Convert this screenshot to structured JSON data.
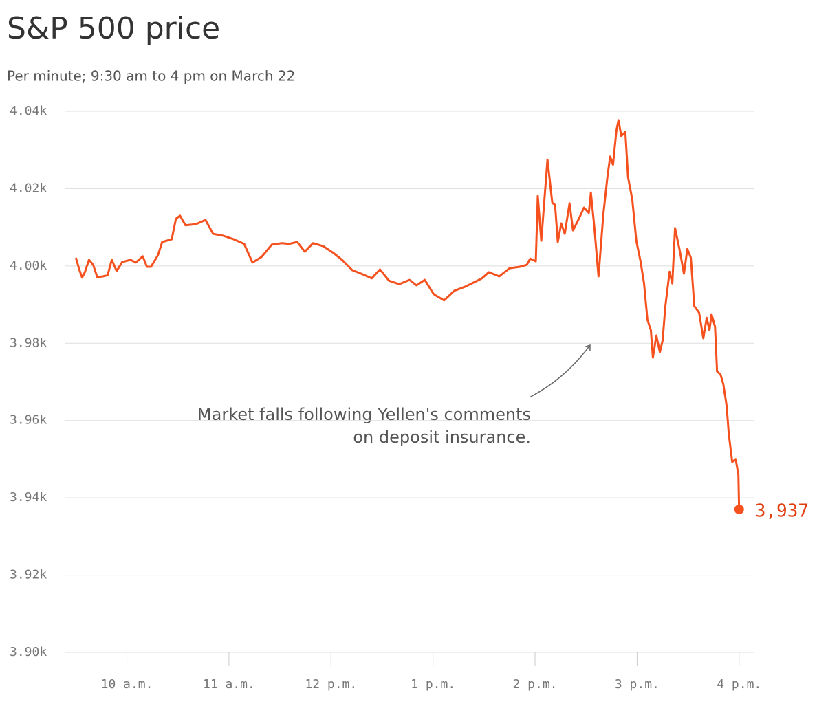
{
  "chart_data": {
    "type": "line",
    "title": "S&P 500 price",
    "subtitle": "Per minute; 9:30 am to 4 pm on March 22",
    "annotation": [
      "Market falls following Yellen's comments",
      "on deposit insurance."
    ],
    "color": "#f5511f",
    "label_color": "#e03d10",
    "grid": true,
    "xlim": [
      9.43,
      16.15
    ],
    "ylim": [
      3900,
      4040
    ],
    "xticks": [
      {
        "value": 10,
        "label": "10 a.m."
      },
      {
        "value": 11,
        "label": "11 a.m."
      },
      {
        "value": 12,
        "label": "12 p.m."
      },
      {
        "value": 13,
        "label": "1 p.m."
      },
      {
        "value": 14,
        "label": "2 p.m."
      },
      {
        "value": 15,
        "label": "3 p.m."
      },
      {
        "value": 16,
        "label": "4 p.m."
      }
    ],
    "yticks": [
      {
        "value": 3900,
        "label": "3.90k"
      },
      {
        "value": 3920,
        "label": "3.92k"
      },
      {
        "value": 3940,
        "label": "3.94k"
      },
      {
        "value": 3960,
        "label": "3.96k"
      },
      {
        "value": 3980,
        "label": "3.98k"
      },
      {
        "value": 4000,
        "label": "4.00k"
      },
      {
        "value": 4020,
        "label": "4.02k"
      },
      {
        "value": 4040,
        "label": "4.04k"
      }
    ],
    "x": [
      9.5,
      9.534,
      9.561,
      9.588,
      9.628,
      9.669,
      9.709,
      9.764,
      9.811,
      9.851,
      9.899,
      9.953,
      10.034,
      10.088,
      10.155,
      10.196,
      10.236,
      10.304,
      10.345,
      10.439,
      10.48,
      10.52,
      10.574,
      10.676,
      10.77,
      10.845,
      10.946,
      11.047,
      11.149,
      11.23,
      11.318,
      11.419,
      11.52,
      11.588,
      11.669,
      11.743,
      11.824,
      11.926,
      12.027,
      12.108,
      12.209,
      12.297,
      12.399,
      12.48,
      12.568,
      12.669,
      12.77,
      12.838,
      12.919,
      13.007,
      13.108,
      13.209,
      13.311,
      13.412,
      13.48,
      13.547,
      13.649,
      13.75,
      13.851,
      13.919,
      13.953,
      14.007,
      14.027,
      14.061,
      14.122,
      14.169,
      14.196,
      14.223,
      14.257,
      14.291,
      14.338,
      14.372,
      14.426,
      14.48,
      14.527,
      14.547,
      14.581,
      14.622,
      14.669,
      14.709,
      14.736,
      14.764,
      14.797,
      14.818,
      14.845,
      14.885,
      14.912,
      14.953,
      14.993,
      15.034,
      15.068,
      15.101,
      15.135,
      15.155,
      15.189,
      15.223,
      15.25,
      15.277,
      15.318,
      15.345,
      15.372,
      15.419,
      15.459,
      15.493,
      15.527,
      15.561,
      15.608,
      15.649,
      15.682,
      15.709,
      15.73,
      15.764,
      15.784,
      15.818,
      15.845,
      15.878,
      15.899,
      15.932,
      15.966,
      15.993,
      16.0
    ],
    "values": [
      4002.1,
      3999,
      3997,
      3998.4,
      4001.6,
      4000.3,
      3997.1,
      3997.3,
      3997.6,
      4001.6,
      3998.7,
      4001,
      4001.6,
      4000.9,
      4002.5,
      3999.8,
      3999.8,
      4002.8,
      4006.2,
      4006.9,
      4012.2,
      4013,
      4010.5,
      4010.8,
      4011.9,
      4008.3,
      4007.8,
      4006.9,
      4005.7,
      4000.9,
      4002.3,
      4005.5,
      4005.9,
      4005.7,
      4006.2,
      4003.7,
      4005.9,
      4005.1,
      4003.3,
      4001.6,
      3998.9,
      3998,
      3996.8,
      3999.1,
      3996.2,
      3995.3,
      3996.4,
      3995,
      3996.4,
      3992.7,
      3991.1,
      3993.6,
      3994.6,
      3995.9,
      3996.8,
      3998.4,
      3997.3,
      3999.4,
      3999.8,
      4000.3,
      4001.9,
      4001.2,
      4018.1,
      4006.5,
      4027.5,
      4016.3,
      4015.8,
      4006.2,
      4011,
      4008.3,
      4016.2,
      4009.2,
      4012,
      4015.1,
      4013.7,
      4019,
      4010.1,
      3997.3,
      4013.3,
      4022.9,
      4028.3,
      4026.2,
      4035,
      4037.7,
      4033.6,
      4034.7,
      4022.9,
      4017.2,
      4006.5,
      4001.2,
      3995.5,
      3986.1,
      3983.4,
      3976.3,
      3982,
      3977.7,
      3980.7,
      3989.6,
      3998.5,
      3995.5,
      4009.8,
      4003.9,
      3998,
      4004.4,
      4002.1,
      3989.6,
      3987.9,
      3981.3,
      3986.6,
      3983.4,
      3987.5,
      3984.3,
      3972.7,
      3971.9,
      3969.5,
      3963.8,
      3956.4,
      3949.3,
      3950,
      3946,
      3937
    ],
    "value_labels": [
      null,
      null,
      null,
      null,
      null,
      null,
      null,
      null,
      null,
      null,
      null,
      null,
      null,
      null,
      null,
      null,
      null,
      null,
      null,
      null,
      null,
      null,
      null,
      null,
      null,
      null,
      null,
      null,
      null,
      null,
      null,
      null,
      null,
      null,
      null,
      null,
      null,
      null,
      null,
      null,
      null,
      null,
      null,
      null,
      null,
      null,
      null,
      null,
      null,
      null,
      null,
      null,
      null,
      null,
      null,
      null,
      null,
      null,
      null,
      null,
      null,
      null,
      null,
      null,
      null,
      null,
      null,
      null,
      null,
      null,
      null,
      null,
      null,
      null,
      null,
      null,
      null,
      null,
      null,
      null,
      null,
      null,
      null,
      null,
      null,
      null,
      null,
      null,
      null,
      null,
      null,
      null,
      null,
      null,
      null,
      null,
      null,
      null,
      null,
      null,
      null,
      null,
      null,
      null,
      null,
      null,
      null,
      null,
      null,
      null,
      null,
      null,
      null,
      null,
      null,
      null,
      null,
      null,
      null,
      null,
      "3,937"
    ]
  }
}
